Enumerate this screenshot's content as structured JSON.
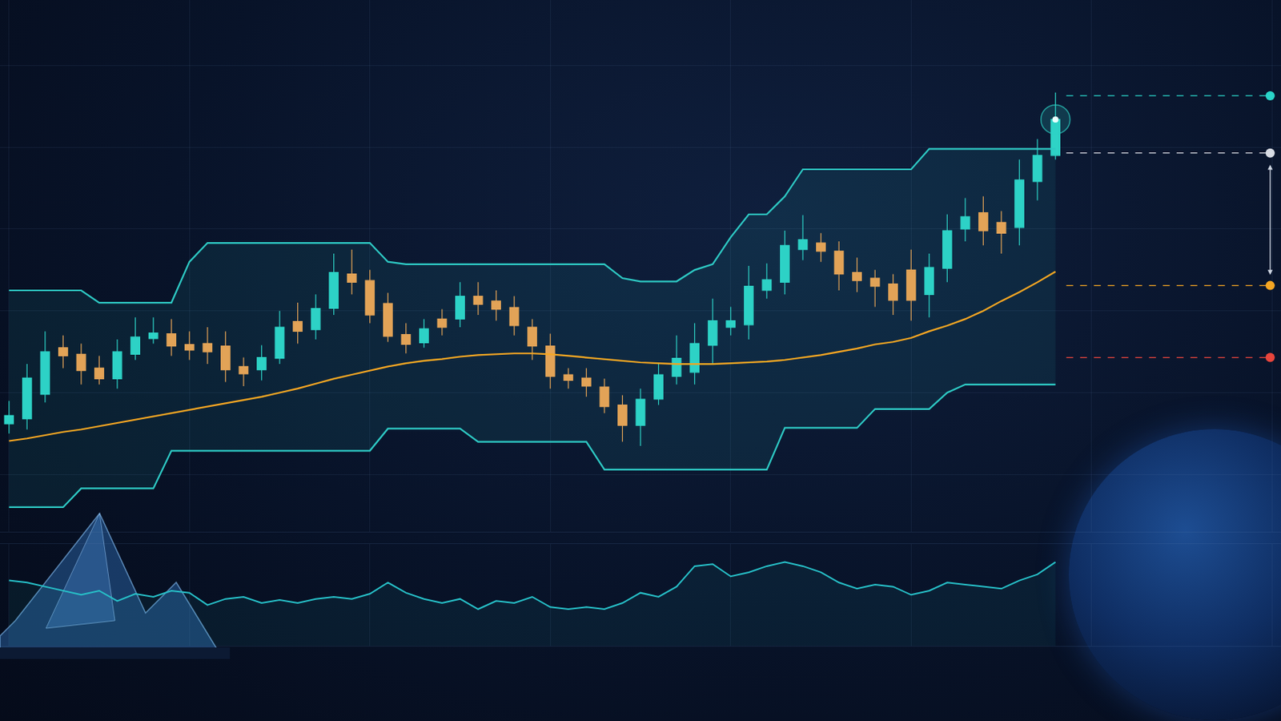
{
  "chart_data": {
    "type": "candlestick",
    "tick_labels": false,
    "grid": true,
    "x": [
      0,
      1,
      2,
      3,
      4,
      5,
      6,
      7,
      8,
      9,
      10,
      11,
      12,
      13,
      14,
      15,
      16,
      17,
      18,
      19,
      20,
      21,
      22,
      23,
      24,
      25,
      26,
      27,
      28,
      29,
      30,
      31,
      32,
      33,
      34,
      35,
      36,
      37,
      38,
      39,
      40,
      41,
      42,
      43,
      44,
      45,
      46,
      47,
      48,
      49,
      50,
      51,
      52,
      53,
      54,
      55,
      56,
      57,
      58
    ],
    "xlim": [
      -0.5,
      70.5
    ],
    "xticks": [
      0,
      10,
      20,
      30,
      40,
      50,
      60,
      70
    ],
    "ylim": [
      23,
      88
    ],
    "yticks": [
      30,
      40,
      50,
      60,
      70,
      80
    ],
    "y2lim": [
      0,
      100
    ],
    "y2ticks": [
      0,
      100
    ],
    "colors": {
      "up": "#2ed3c6",
      "down": "#f5a04c"
    },
    "open": [
      36.2,
      36.8,
      39.8,
      45.5,
      44.7,
      43.0,
      41.7,
      44.7,
      46.6,
      47.2,
      45.9,
      46.0,
      45.7,
      43.2,
      42.8,
      44.2,
      48.7,
      47.7,
      50.3,
      54.5,
      53.7,
      50.9,
      47.1,
      46.1,
      49.0,
      49.0,
      51.8,
      51.2,
      50.4,
      48.0,
      45.7,
      42.2,
      41.8,
      40.7,
      38.5,
      36.0,
      39.2,
      42.0,
      42.5,
      45.8,
      48.0,
      48.3,
      52.5,
      53.5,
      57.5,
      58.3,
      57.3,
      54.7,
      54.0,
      53.3,
      55.0,
      52.0,
      55.2,
      60.0,
      62.0,
      60.8,
      60.2,
      65.8,
      69.0
    ],
    "high": [
      39.0,
      43.5,
      47.5,
      47.0,
      46.0,
      44.5,
      46.5,
      49.2,
      49.2,
      49.0,
      47.5,
      48.0,
      47.5,
      44.3,
      45.8,
      50.0,
      51.0,
      52.0,
      57.0,
      57.5,
      55.0,
      52.2,
      48.5,
      49.0,
      50.2,
      53.5,
      53.5,
      52.5,
      51.8,
      49.0,
      47.2,
      43.0,
      43.0,
      41.7,
      39.7,
      40.5,
      43.5,
      47.0,
      48.5,
      51.5,
      50.5,
      55.5,
      55.8,
      59.8,
      61.7,
      59.5,
      58.5,
      56.5,
      55.0,
      54.5,
      57.5,
      57.0,
      61.8,
      63.8,
      64.0,
      62.2,
      68.5,
      71.0,
      76.7
    ],
    "low": [
      35.0,
      35.5,
      38.8,
      43.0,
      41.0,
      41.0,
      40.5,
      44.0,
      46.0,
      44.5,
      44.0,
      43.5,
      41.3,
      40.8,
      41.5,
      43.5,
      46.0,
      46.5,
      49.5,
      52.0,
      48.5,
      46.2,
      44.8,
      45.5,
      47.0,
      48.0,
      49.5,
      48.8,
      47.0,
      44.0,
      40.5,
      40.5,
      39.5,
      37.5,
      34.0,
      33.5,
      38.5,
      41.0,
      41.0,
      43.5,
      47.0,
      46.5,
      51.5,
      52.0,
      56.2,
      56.0,
      52.5,
      52.3,
      50.5,
      49.5,
      48.8,
      49.2,
      53.5,
      58.5,
      58.0,
      57.0,
      58.0,
      63.5,
      68.5
    ],
    "close": [
      37.2,
      41.8,
      45.0,
      44.5,
      42.7,
      41.7,
      45.0,
      46.8,
      47.3,
      45.7,
      45.2,
      45.0,
      42.8,
      42.3,
      44.3,
      48.0,
      47.5,
      50.3,
      54.7,
      53.5,
      49.5,
      46.9,
      45.9,
      47.8,
      48.0,
      51.8,
      50.8,
      50.2,
      48.2,
      45.7,
      42.0,
      41.5,
      40.8,
      38.3,
      36.0,
      39.2,
      42.2,
      44.2,
      46.0,
      48.8,
      48.8,
      53.0,
      53.8,
      58.0,
      58.7,
      57.3,
      54.5,
      53.7,
      53.0,
      51.3,
      51.3,
      55.3,
      59.8,
      61.5,
      59.8,
      59.5,
      66.0,
      69.0,
      73.4
    ],
    "series": [
      {
        "type": "line",
        "color": "#2ec9c4",
        "values": [
          52.5,
          52.5,
          52.5,
          52.5,
          52.5,
          51.0,
          51.0,
          51.0,
          51.0,
          51.0,
          56.0,
          58.3,
          58.3,
          58.3,
          58.3,
          58.3,
          58.3,
          58.3,
          58.3,
          58.3,
          58.3,
          56.0,
          55.7,
          55.7,
          55.7,
          55.7,
          55.7,
          55.7,
          55.7,
          55.7,
          55.7,
          55.7,
          55.7,
          55.7,
          54.0,
          53.6,
          53.6,
          53.6,
          55.0,
          55.7,
          59.0,
          61.8,
          61.8,
          64.0,
          67.3,
          67.3,
          67.3,
          67.3,
          67.3,
          67.3,
          67.3,
          69.8,
          69.8,
          69.8,
          69.8,
          69.8,
          69.8,
          69.8,
          69.8
        ]
      },
      {
        "type": "area",
        "color": "#2ec9c4",
        "values": [
          26.0,
          26.0,
          26.0,
          26.0,
          28.3,
          28.3,
          28.3,
          28.3,
          28.3,
          32.9,
          32.9,
          32.9,
          32.9,
          32.9,
          32.9,
          32.9,
          32.9,
          32.9,
          32.9,
          32.9,
          32.9,
          35.6,
          35.6,
          35.6,
          35.6,
          35.6,
          34.0,
          34.0,
          34.0,
          34.0,
          34.0,
          34.0,
          34.0,
          30.6,
          30.6,
          30.6,
          30.6,
          30.6,
          30.6,
          30.6,
          30.6,
          30.6,
          30.6,
          35.7,
          35.7,
          35.7,
          35.7,
          35.7,
          38.0,
          38.0,
          38.0,
          38.0,
          40.0,
          41.0,
          41.0,
          41.0,
          41.0,
          41.0,
          41.0
        ]
      },
      {
        "type": "line",
        "color": "#f5a623",
        "values": [
          34.1,
          34.4,
          34.8,
          35.2,
          35.5,
          35.9,
          36.3,
          36.7,
          37.1,
          37.5,
          37.9,
          38.3,
          38.7,
          39.1,
          39.5,
          40.0,
          40.5,
          41.1,
          41.7,
          42.2,
          42.7,
          43.2,
          43.6,
          43.9,
          44.1,
          44.4,
          44.6,
          44.7,
          44.8,
          44.8,
          44.7,
          44.5,
          44.3,
          44.1,
          43.9,
          43.7,
          43.6,
          43.5,
          43.5,
          43.5,
          43.6,
          43.7,
          43.8,
          44.0,
          44.3,
          44.6,
          45.0,
          45.4,
          45.9,
          46.2,
          46.7,
          47.5,
          48.2,
          49.0,
          50.0,
          51.2,
          52.3,
          53.5,
          54.8
        ]
      },
      {
        "type": "area",
        "axis": "y2",
        "color": "#27c0c8",
        "values": [
          64,
          62,
          58,
          54,
          50,
          54,
          44,
          51,
          48,
          54,
          52,
          40,
          46,
          48,
          42,
          45,
          42,
          46,
          48,
          46,
          51,
          62,
          52,
          46,
          42,
          46,
          36,
          44,
          42,
          48,
          38,
          36,
          38,
          36,
          42,
          52,
          48,
          58,
          78,
          80,
          68,
          72,
          78,
          82,
          78,
          72,
          62,
          56,
          60,
          58,
          50,
          54,
          62,
          60,
          58,
          56,
          64,
          70,
          82
        ]
      }
    ],
    "levels": [
      {
        "value": 76.3,
        "color": "#2ad4c8"
      },
      {
        "value": 69.3,
        "color": "#d8dce4"
      },
      {
        "value": 53.1,
        "color": "#f5a623"
      },
      {
        "value": 44.3,
        "color": "#e8453c"
      }
    ]
  }
}
